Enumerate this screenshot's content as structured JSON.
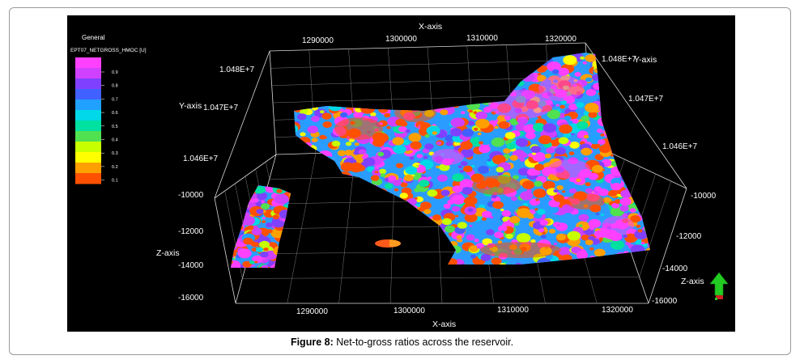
{
  "figure": {
    "caption_label": "Figure 8:",
    "caption_text": " Net-to-gross ratios across the reservoir."
  },
  "viewer": {
    "panel_title": "General",
    "property_name": "EPT07_NETGROSS_HMOC [U]",
    "colorbar_ticks": [
      "0.9",
      "0.8",
      "0.7",
      "0.6",
      "0.5",
      "0.4",
      "0.3",
      "0.2",
      "0.1"
    ],
    "colorbar_colors": [
      "#ff5000",
      "#ffa000",
      "#ffff00",
      "#c8ff00",
      "#50e050",
      "#00e0a0",
      "#00d8e8",
      "#20a0ff",
      "#4060ff",
      "#8040ff",
      "#d040ff",
      "#ff40ff"
    ],
    "axes": {
      "x_title": "X-axis",
      "y_title": "Y-axis",
      "z_title": "Z-axis",
      "x_ticks_top": [
        "1290000",
        "1300000",
        "1310000",
        "1320000"
      ],
      "x_ticks_bottom": [
        "1290000",
        "1300000",
        "1310000",
        "1320000"
      ],
      "y_ticks_left": [
        "1.048E+7",
        "1.047E+7",
        "1.046E+7"
      ],
      "y_ticks_right": [
        "1.048E+7",
        "1.047E+7",
        "1.046E+7"
      ],
      "z_ticks_left": [
        "-10000",
        "-12000",
        "-14000",
        "-16000"
      ],
      "z_ticks_right": [
        "-10000",
        "-12000",
        "-14000",
        "-16000"
      ]
    },
    "north_arrow_icon": "north-arrow-icon"
  }
}
